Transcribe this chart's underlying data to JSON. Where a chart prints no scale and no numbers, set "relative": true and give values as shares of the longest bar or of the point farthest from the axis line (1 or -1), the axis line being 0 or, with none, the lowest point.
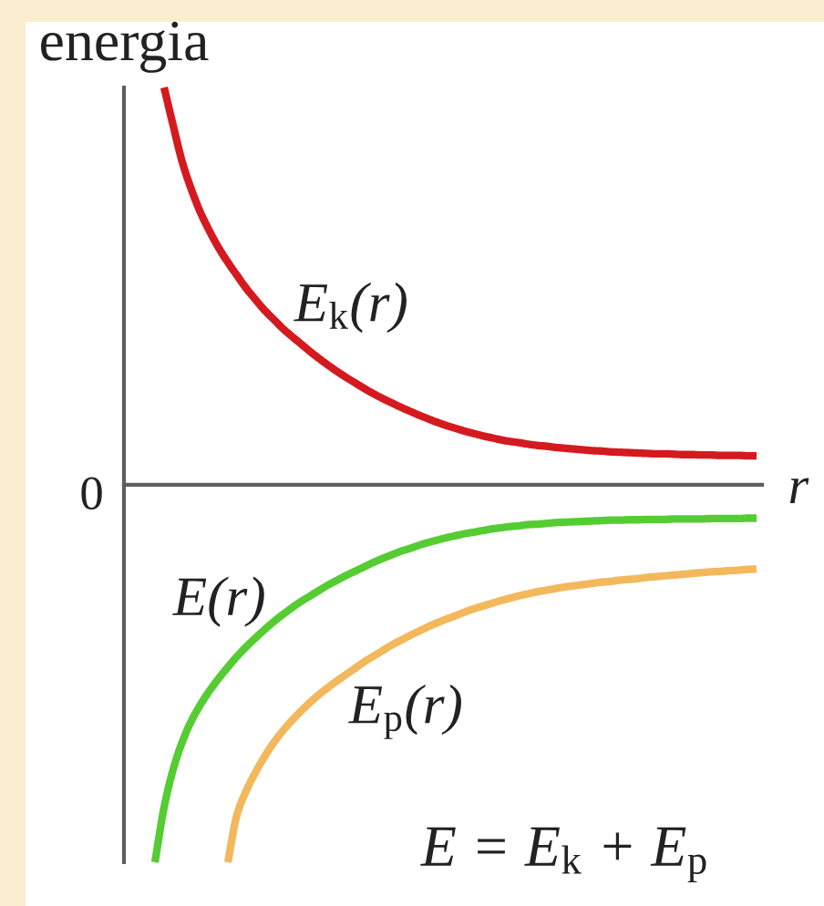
{
  "chart_data": {
    "type": "line",
    "relative": true,
    "xlabel": "r",
    "ylabel": "energia",
    "categories": [
      null,
      null,
      null,
      null,
      null,
      null,
      null,
      null,
      null,
      null,
      null,
      null,
      null,
      null,
      null,
      null,
      null,
      null,
      null,
      null,
      null,
      null,
      null,
      null,
      null,
      null,
      null,
      null,
      null,
      null,
      null,
      null,
      null,
      null,
      null,
      null,
      null,
      null,
      null,
      null,
      null,
      null,
      null,
      null,
      null,
      null,
      null,
      null,
      null,
      null,
      null,
      null,
      null,
      null,
      null,
      null,
      null,
      null,
      null,
      null,
      null,
      null,
      null,
      null,
      null,
      null,
      null
    ],
    "series": [
      {
        "name": "E$_{k}$(r)",
        "color": "#d41a1f",
        "values": [
          null,
          1.0,
          0.904,
          0.812,
          0.743,
          0.685,
          0.638,
          0.596,
          0.56,
          0.527,
          0.495,
          0.467,
          0.44,
          0.417,
          0.394,
          0.374,
          0.355,
          0.336,
          0.318,
          0.301,
          0.285,
          0.27,
          0.256,
          0.242,
          0.229,
          0.217,
          0.206,
          0.195,
          0.185,
          0.175,
          0.166,
          0.157,
          0.149,
          0.142,
          0.135,
          0.129,
          0.123,
          0.118,
          0.113,
          0.109,
          0.106,
          0.102,
          0.099,
          0.097,
          0.094,
          0.092,
          0.09,
          0.088,
          0.086,
          0.085,
          0.083,
          0.082,
          0.081,
          0.08,
          0.079,
          0.078,
          0.078,
          0.077,
          0.076,
          0.076,
          0.075,
          0.075,
          0.074,
          0.074,
          0.074,
          0.073,
          0.073
        ]
      },
      {
        "name": "E(r)",
        "color": "#56cc33",
        "values": [
          -0.95,
          -0.812,
          -0.716,
          -0.647,
          -0.594,
          -0.553,
          -0.518,
          -0.487,
          -0.459,
          -0.432,
          -0.408,
          -0.386,
          -0.365,
          -0.345,
          -0.327,
          -0.31,
          -0.294,
          -0.28,
          -0.266,
          -0.252,
          -0.24,
          -0.228,
          -0.217,
          -0.206,
          -0.195,
          -0.185,
          -0.176,
          -0.167,
          -0.16,
          -0.152,
          -0.145,
          -0.139,
          -0.133,
          -0.128,
          -0.123,
          -0.119,
          -0.115,
          -0.111,
          -0.108,
          -0.105,
          -0.103,
          -0.1,
          -0.099,
          -0.097,
          -0.095,
          -0.094,
          -0.093,
          -0.092,
          -0.091,
          -0.09,
          -0.089,
          -0.089,
          -0.088,
          -0.088,
          -0.087,
          -0.087,
          -0.087,
          -0.086,
          -0.086,
          -0.086,
          -0.086,
          -0.085,
          -0.085,
          -0.085,
          -0.085,
          -0.084,
          -0.084
        ]
      },
      {
        "name": "E$_{p}$(r)",
        "color": "#f3b85c",
        "values": [
          null,
          null,
          null,
          null,
          null,
          null,
          null,
          null,
          -0.95,
          -0.83,
          -0.771,
          -0.725,
          -0.685,
          -0.65,
          -0.62,
          -0.594,
          -0.57,
          -0.548,
          -0.528,
          -0.51,
          -0.493,
          -0.477,
          -0.461,
          -0.445,
          -0.431,
          -0.417,
          -0.403,
          -0.391,
          -0.379,
          -0.368,
          -0.357,
          -0.347,
          -0.338,
          -0.329,
          -0.32,
          -0.312,
          -0.305,
          -0.298,
          -0.291,
          -0.285,
          -0.279,
          -0.274,
          -0.269,
          -0.265,
          -0.261,
          -0.257,
          -0.254,
          -0.251,
          -0.248,
          -0.245,
          -0.243,
          -0.24,
          -0.238,
          -0.236,
          -0.233,
          -0.231,
          -0.229,
          -0.227,
          -0.225,
          -0.223,
          -0.221,
          -0.219,
          -0.218,
          -0.216,
          -0.215,
          -0.213,
          -0.212
        ]
      }
    ],
    "annotations": [
      "0",
      "E = E$_{k}$ + E$_{p}$"
    ]
  }
}
